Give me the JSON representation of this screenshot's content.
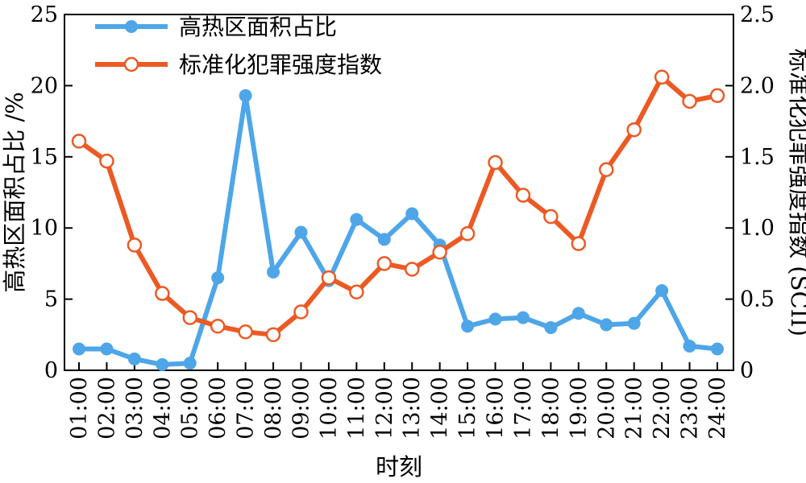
{
  "chart_data": {
    "type": "line",
    "categories": [
      "01:00",
      "02:00",
      "03:00",
      "04:00",
      "05:00",
      "06:00",
      "07:00",
      "08:00",
      "09:00",
      "10:00",
      "11:00",
      "12:00",
      "13:00",
      "14:00",
      "15:00",
      "16:00",
      "17:00",
      "18:00",
      "19:00",
      "20:00",
      "21:00",
      "22:00",
      "23:00",
      "24:00"
    ],
    "xlabel": "时刻",
    "ylabel_left": "高热区面积占比 /%",
    "ylabel_right": "标准化犯罪强度指数 (SCII)",
    "ylim_left": [
      0,
      25
    ],
    "ylim_right": [
      0,
      2.5
    ],
    "yticks_left": [
      "0",
      "5",
      "10",
      "15",
      "20",
      "25"
    ],
    "yticks_right": [
      "0",
      "0.5",
      "1.0",
      "1.5",
      "2.0",
      "2.5"
    ],
    "legend_position": "top-left",
    "grid": false,
    "series": [
      {
        "name": "高热区面积占比",
        "axis": "left",
        "color": "#4ea6e8",
        "marker": "filled-circle",
        "values": [
          1.5,
          1.5,
          0.8,
          0.4,
          0.5,
          6.5,
          19.3,
          6.9,
          9.7,
          6.3,
          10.6,
          9.2,
          11.0,
          8.8,
          3.1,
          3.6,
          3.7,
          3.0,
          4.0,
          3.2,
          3.3,
          5.6,
          1.7,
          1.5
        ]
      },
      {
        "name": "标准化犯罪强度指数",
        "axis": "right",
        "color": "#ec5a24",
        "marker": "open-circle",
        "values": [
          1.61,
          1.47,
          0.88,
          0.54,
          0.37,
          0.31,
          0.27,
          0.25,
          0.41,
          0.65,
          0.55,
          0.75,
          0.71,
          0.83,
          0.96,
          1.46,
          1.23,
          1.08,
          0.89,
          1.41,
          1.69,
          2.06,
          1.89,
          1.93
        ]
      }
    ]
  }
}
